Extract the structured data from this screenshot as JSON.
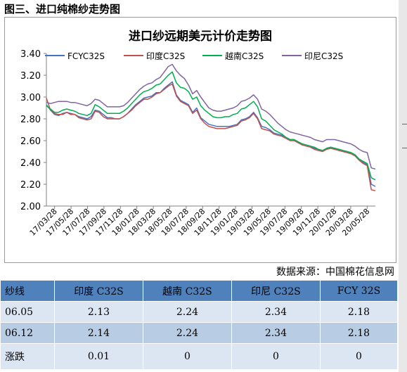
{
  "caption": "图三、进口纯棉纱走势图",
  "source": "数据来源：中国棉花信息网",
  "chart_data": {
    "type": "line",
    "title": "进口纱远期美元计价走势图",
    "xlabel": "",
    "ylabel": "",
    "ylim": [
      2.0,
      3.4
    ],
    "yticks": [
      "3.40",
      "3.20",
      "3.00",
      "2.80",
      "2.60",
      "2.40",
      "2.20",
      "2.00"
    ],
    "xticks": [
      "17/03/28",
      "17/05/28",
      "17/07/28",
      "17/09/28",
      "17/11/28",
      "18/01/28",
      "18/03/28",
      "18/05/28",
      "18/07/28",
      "18/09/28",
      "18/11/28",
      "19/01/28",
      "19/03/28",
      "19/05/28",
      "19/07/28",
      "19/09/28",
      "19/11/28",
      "20/01/28",
      "20/03/28",
      "20/05/28"
    ],
    "legend_position": "top",
    "grid": false,
    "series": [
      {
        "name": "FCYC32S",
        "color": "#4472c4",
        "values": [
          2.93,
          2.88,
          2.84,
          2.83,
          2.85,
          2.86,
          2.85,
          2.84,
          2.82,
          2.81,
          2.8,
          2.82,
          2.88,
          2.87,
          2.84,
          2.81,
          2.81,
          2.8,
          2.8,
          2.82,
          2.85,
          2.89,
          2.93,
          2.96,
          2.99,
          3.0,
          3.01,
          3.04,
          3.04,
          3.08,
          3.11,
          3.14,
          3.02,
          2.97,
          2.95,
          2.93,
          2.86,
          2.9,
          2.81,
          2.78,
          2.75,
          2.74,
          2.73,
          2.73,
          2.73,
          2.73,
          2.74,
          2.75,
          2.79,
          2.8,
          2.82,
          2.86,
          2.81,
          2.73,
          2.72,
          2.7,
          2.67,
          2.66,
          2.65,
          2.63,
          2.61,
          2.61,
          2.59,
          2.57,
          2.56,
          2.55,
          2.53,
          2.52,
          2.51,
          2.53,
          2.54,
          2.53,
          2.52,
          2.51,
          2.5,
          2.49,
          2.47,
          2.43,
          2.4,
          2.38,
          2.2,
          2.18
        ]
      },
      {
        "name": "印度C32S",
        "color": "#c0504d",
        "values": [
          2.99,
          2.88,
          2.85,
          2.84,
          2.84,
          2.86,
          2.84,
          2.84,
          2.81,
          2.8,
          2.79,
          2.8,
          2.87,
          2.86,
          2.82,
          2.8,
          2.8,
          2.8,
          2.8,
          2.82,
          2.85,
          2.88,
          2.92,
          2.95,
          2.98,
          2.98,
          3.0,
          3.03,
          3.04,
          3.07,
          3.1,
          3.12,
          3.01,
          2.96,
          2.94,
          2.92,
          2.85,
          2.88,
          2.8,
          2.76,
          2.73,
          2.72,
          2.71,
          2.71,
          2.71,
          2.72,
          2.73,
          2.74,
          2.78,
          2.79,
          2.81,
          2.85,
          2.8,
          2.71,
          2.7,
          2.69,
          2.66,
          2.65,
          2.64,
          2.62,
          2.6,
          2.6,
          2.58,
          2.56,
          2.55,
          2.54,
          2.52,
          2.51,
          2.5,
          2.52,
          2.53,
          2.52,
          2.51,
          2.5,
          2.49,
          2.48,
          2.46,
          2.42,
          2.39,
          2.37,
          2.15,
          2.14
        ]
      },
      {
        "name": "越南C32S",
        "color": "#00b050",
        "values": [
          2.92,
          2.89,
          2.86,
          2.86,
          2.88,
          2.89,
          2.88,
          2.87,
          2.85,
          2.84,
          2.83,
          2.85,
          2.93,
          2.91,
          2.88,
          2.85,
          2.85,
          2.85,
          2.85,
          2.87,
          2.9,
          2.94,
          2.98,
          3.02,
          3.05,
          3.06,
          3.08,
          3.11,
          3.12,
          3.16,
          3.2,
          3.23,
          3.13,
          3.09,
          3.08,
          3.05,
          2.98,
          3.0,
          2.92,
          2.88,
          2.85,
          2.82,
          2.81,
          2.81,
          2.82,
          2.82,
          2.84,
          2.85,
          2.89,
          2.9,
          2.93,
          2.96,
          2.91,
          2.8,
          2.78,
          2.74,
          2.7,
          2.68,
          2.66,
          2.63,
          2.61,
          2.61,
          2.59,
          2.57,
          2.56,
          2.55,
          2.54,
          2.52,
          2.51,
          2.53,
          2.54,
          2.53,
          2.52,
          2.51,
          2.5,
          2.49,
          2.47,
          2.43,
          2.41,
          2.39,
          2.26,
          2.24
        ]
      },
      {
        "name": "印尼C32S",
        "color": "#8064a2",
        "values": [
          2.95,
          2.94,
          2.95,
          2.96,
          2.96,
          2.96,
          2.95,
          2.95,
          2.94,
          2.93,
          2.92,
          2.94,
          2.98,
          2.97,
          2.94,
          2.91,
          2.91,
          2.91,
          2.91,
          2.92,
          2.95,
          2.99,
          3.03,
          3.07,
          3.1,
          3.12,
          3.13,
          3.16,
          3.18,
          3.23,
          3.28,
          3.3,
          3.24,
          3.2,
          3.17,
          3.11,
          3.03,
          3.06,
          3.0,
          2.95,
          2.9,
          2.88,
          2.87,
          2.87,
          2.88,
          2.89,
          2.9,
          2.92,
          2.96,
          2.97,
          2.99,
          3.02,
          2.98,
          2.89,
          2.87,
          2.84,
          2.8,
          2.76,
          2.73,
          2.7,
          2.68,
          2.67,
          2.66,
          2.65,
          2.64,
          2.63,
          2.61,
          2.6,
          2.59,
          2.61,
          2.61,
          2.61,
          2.6,
          2.59,
          2.58,
          2.57,
          2.55,
          2.52,
          2.5,
          2.49,
          2.35,
          2.34
        ]
      }
    ]
  },
  "table": {
    "headers": [
      "纱线",
      "印度 C32S",
      "越南 C32S",
      "印尼 C32S",
      "FCY 32S"
    ],
    "rows": [
      [
        "06.05",
        "2.13",
        "2.24",
        "2.34",
        "2.18"
      ],
      [
        "06.12",
        "2.14",
        "2.24",
        "2.34",
        "2.18"
      ],
      [
        "涨跌",
        "0.01",
        "0",
        "0",
        "0"
      ]
    ]
  }
}
